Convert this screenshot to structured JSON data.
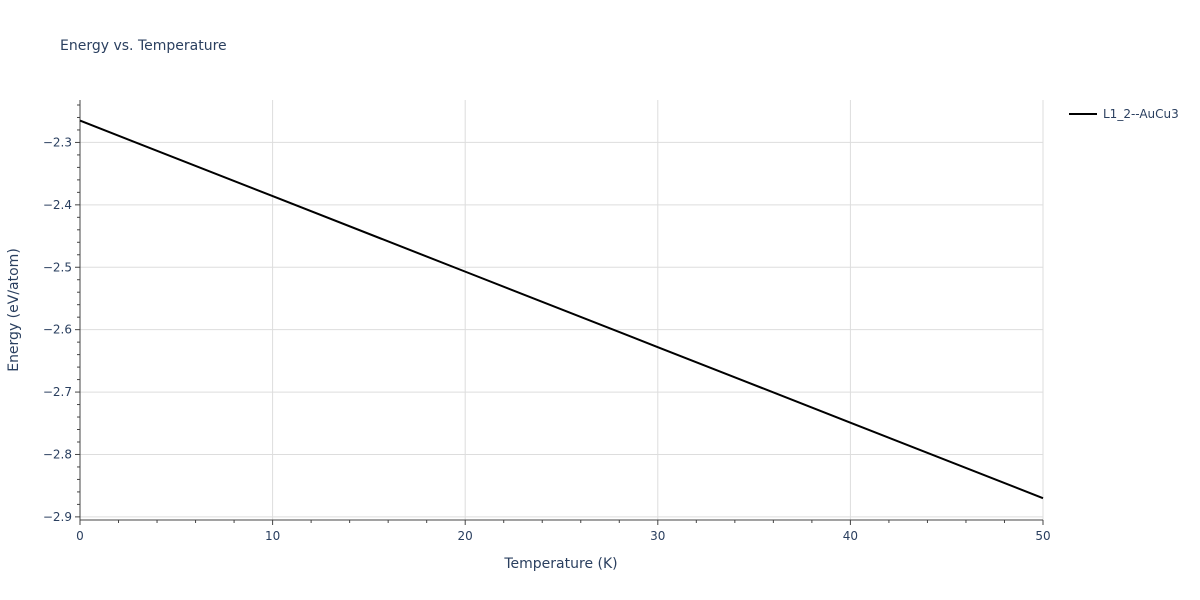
{
  "chart_data": {
    "type": "line",
    "title": "Energy vs. Temperature",
    "xlabel": "Temperature (K)",
    "ylabel": "Energy (eV/atom)",
    "xlim": [
      0,
      50
    ],
    "ylim": [
      -2.905,
      -2.232
    ],
    "x_ticks": [
      0,
      10,
      20,
      30,
      40,
      50
    ],
    "x_tick_labels": [
      "0",
      "10",
      "20",
      "30",
      "40",
      "50"
    ],
    "y_ticks": [
      -2.3,
      -2.4,
      -2.5,
      -2.6,
      -2.7,
      -2.8,
      -2.9
    ],
    "y_tick_labels": [
      "−2.3",
      "−2.4",
      "−2.5",
      "−2.6",
      "−2.7",
      "−2.8",
      "−2.9"
    ],
    "grid": true,
    "legend_position": "top-right",
    "series": [
      {
        "name": "L1_2--AuCu3",
        "color": "#000000",
        "x": [
          0,
          10,
          20,
          30,
          40,
          50
        ],
        "y": [
          -2.265,
          -2.386,
          -2.507,
          -2.628,
          -2.749,
          -2.87
        ]
      }
    ]
  }
}
